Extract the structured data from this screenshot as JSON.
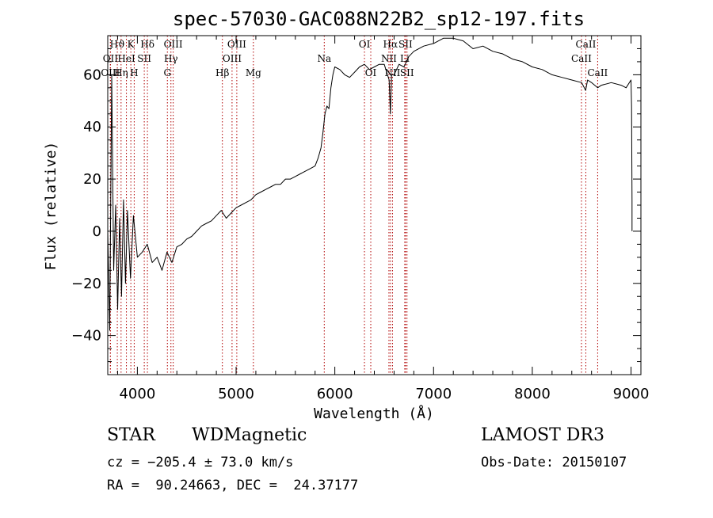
{
  "chart_data": {
    "type": "line",
    "title": "spec-57030-GAC088N22B2_sp12-197.fits",
    "xlabel": "Wavelength (Å)",
    "ylabel": "Flux (relative)",
    "xlim": [
      3700,
      9100
    ],
    "ylim": [
      -55,
      75
    ],
    "xticks": [
      4000,
      5000,
      6000,
      7000,
      8000,
      9000
    ],
    "yticks": [
      -40,
      -20,
      0,
      20,
      40,
      60
    ],
    "series": [
      {
        "name": "flux",
        "x": [
          3700,
          3720,
          3740,
          3760,
          3780,
          3800,
          3820,
          3840,
          3860,
          3880,
          3900,
          3930,
          3960,
          4000,
          4050,
          4100,
          4150,
          4200,
          4250,
          4300,
          4350,
          4400,
          4450,
          4500,
          4550,
          4600,
          4650,
          4700,
          4750,
          4800,
          4850,
          4900,
          4950,
          5000,
          5050,
          5100,
          5150,
          5200,
          5250,
          5300,
          5350,
          5400,
          5450,
          5500,
          5550,
          5600,
          5650,
          5700,
          5750,
          5800,
          5830,
          5860,
          5880,
          5900,
          5920,
          5940,
          5960,
          5980,
          6000,
          6050,
          6100,
          6150,
          6200,
          6250,
          6300,
          6350,
          6400,
          6450,
          6500,
          6550,
          6563,
          6575,
          6600,
          6650,
          6700,
          6750,
          6800,
          6900,
          7000,
          7100,
          7200,
          7300,
          7400,
          7500,
          7600,
          7700,
          7800,
          7900,
          8000,
          8100,
          8200,
          8300,
          8400,
          8500,
          8540,
          8560,
          8600,
          8662,
          8700,
          8800,
          8900,
          8950,
          9000,
          9005,
          9010,
          9010
        ],
        "y": [
          0,
          -38,
          60,
          -15,
          10,
          -30,
          5,
          -25,
          12,
          -20,
          8,
          -18,
          6,
          -10,
          -8,
          -5,
          -12,
          -10,
          -15,
          -8,
          -12,
          -6,
          -5,
          -3,
          -2,
          0,
          2,
          3,
          4,
          6,
          8,
          5,
          7,
          9,
          10,
          11,
          12,
          14,
          15,
          16,
          17,
          18,
          18,
          20,
          20,
          21,
          22,
          23,
          24,
          25,
          28,
          32,
          38,
          45,
          48,
          47,
          55,
          60,
          63,
          62,
          60,
          59,
          61,
          63,
          64,
          62,
          63,
          64,
          64,
          58,
          45,
          60,
          60,
          64,
          63,
          67,
          69,
          71,
          72,
          74,
          74,
          73,
          70,
          71,
          69,
          68,
          66,
          65,
          63,
          62,
          60,
          59,
          58,
          57,
          54,
          58,
          57,
          55,
          56,
          57,
          56,
          55,
          58,
          48,
          12,
          0
        ]
      }
    ],
    "line_markers": [
      {
        "label": "Hϑ",
        "wavelength": 3797,
        "row": 1
      },
      {
        "label": "OII",
        "wavelength": 3727,
        "row": 2
      },
      {
        "label": "OIII",
        "wavelength": 3727,
        "row": 3
      },
      {
        "label": "HeI",
        "wavelength": 3889,
        "row": 2
      },
      {
        "label": "Hη",
        "wavelength": 3835,
        "row": 3
      },
      {
        "label": "K",
        "wavelength": 3934,
        "row": 1
      },
      {
        "label": "SII",
        "wavelength": 4070,
        "row": 2
      },
      {
        "label": "H",
        "wavelength": 3968,
        "row": 3
      },
      {
        "label": "Hδ",
        "wavelength": 4102,
        "row": 1
      },
      {
        "label": "OIII",
        "wavelength": 4363,
        "row": 1
      },
      {
        "label": "Hγ",
        "wavelength": 4340,
        "row": 2
      },
      {
        "label": "G",
        "wavelength": 4304,
        "row": 3
      },
      {
        "label": "OIII",
        "wavelength": 5007,
        "row": 1
      },
      {
        "label": "OIII",
        "wavelength": 4959,
        "row": 2
      },
      {
        "label": "Hβ",
        "wavelength": 4861,
        "row": 3
      },
      {
        "label": "Mg",
        "wavelength": 5175,
        "row": 3
      },
      {
        "label": "Na",
        "wavelength": 5893,
        "row": 2
      },
      {
        "label": "OI",
        "wavelength": 6300,
        "row": 1
      },
      {
        "label": "OI",
        "wavelength": 6364,
        "row": 3
      },
      {
        "label": "Hα",
        "wavelength": 6563,
        "row": 1
      },
      {
        "label": "SII",
        "wavelength": 6716,
        "row": 1
      },
      {
        "label": "NII",
        "wavelength": 6548,
        "row": 2
      },
      {
        "label": "Li",
        "wavelength": 6708,
        "row": 2
      },
      {
        "label": "NII",
        "wavelength": 6584,
        "row": 3
      },
      {
        "label": "SII",
        "wavelength": 6731,
        "row": 3
      },
      {
        "label": "CaII",
        "wavelength": 8542,
        "row": 1
      },
      {
        "label": "CaII",
        "wavelength": 8498,
        "row": 2
      },
      {
        "label": "CaII",
        "wavelength": 8662,
        "row": 3
      }
    ],
    "colors": {
      "spectrum": "#000000",
      "marker": "#b00000",
      "axes": "#000000"
    }
  },
  "info": {
    "class_label": "STAR",
    "subclass": "WDMagnetic",
    "survey": "LAMOST DR3",
    "redshift": "cz = −205.4 ± 73.0 km/s",
    "obs_date": "Obs-Date: 20150107",
    "coords": "RA =  90.24663, DEC =  24.37177"
  }
}
